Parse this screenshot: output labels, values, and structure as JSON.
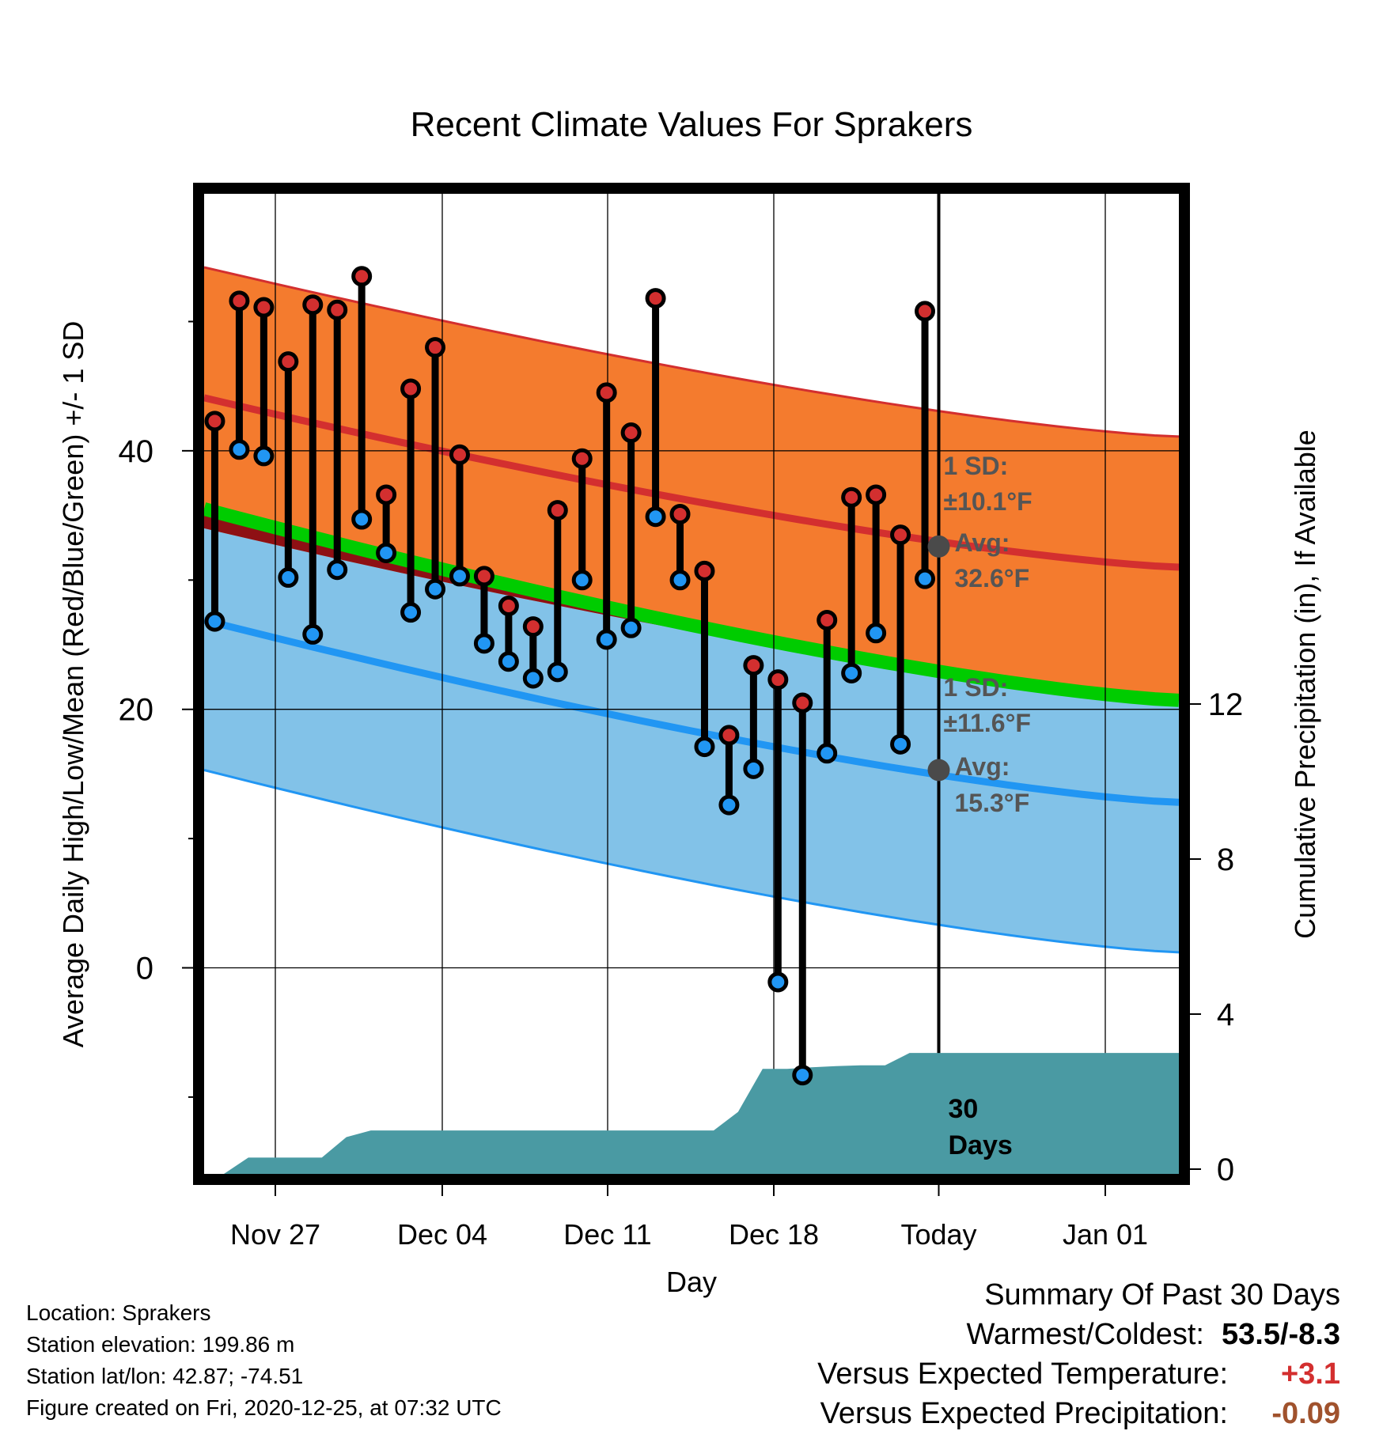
{
  "chart_data": {
    "type": "line",
    "title": "Recent Climate Values For Sprakers",
    "xlabel": "Day",
    "ylabel": "Average Daily High/Low/Mean (Red/Blue/Green) +/- 1 SD",
    "ylabel_right": "Cumulative Precipitation (in), If Available",
    "ylim": [
      -16,
      58
    ],
    "y2lim": [
      0,
      36
    ],
    "x_tick_labels": [
      "Nov 27",
      "Dec 04",
      "Dec 11",
      "Dec 18",
      "Today",
      "Jan 01"
    ],
    "y_tick_labels": [
      "0",
      "20",
      "40"
    ],
    "y2_tick_labels": [
      "0",
      "4",
      "8",
      "12"
    ],
    "days": [
      "Nov 25",
      "Nov 26",
      "Nov 27",
      "Nov 28",
      "Nov 29",
      "Nov 30",
      "Dec 01",
      "Dec 02",
      "Dec 03",
      "Dec 04",
      "Dec 05",
      "Dec 06",
      "Dec 07",
      "Dec 08",
      "Dec 09",
      "Dec 10",
      "Dec 11",
      "Dec 12",
      "Dec 13",
      "Dec 14",
      "Dec 15",
      "Dec 16",
      "Dec 17",
      "Dec 18",
      "Dec 19",
      "Dec 20",
      "Dec 21",
      "Dec 22",
      "Dec 23",
      "Dec 24"
    ],
    "series": [
      {
        "name": "High",
        "color": "#d32f2f",
        "values": [
          42.3,
          51.6,
          51.1,
          46.9,
          51.3,
          50.9,
          53.5,
          36.6,
          44.8,
          48.0,
          39.7,
          30.3,
          28.0,
          26.4,
          35.4,
          39.4,
          44.5,
          41.4,
          51.8,
          35.1,
          30.7,
          18.0,
          23.4,
          22.3,
          20.5,
          26.9,
          36.4,
          36.6,
          33.5,
          50.8
        ]
      },
      {
        "name": "Low",
        "color": "#2196f3",
        "values": [
          26.8,
          40.1,
          39.6,
          30.2,
          25.8,
          30.8,
          34.7,
          32.1,
          27.5,
          29.3,
          30.3,
          25.1,
          23.7,
          22.4,
          22.9,
          30.0,
          25.4,
          26.3,
          34.9,
          30.0,
          17.1,
          12.6,
          15.4,
          -1.1,
          -8.3,
          16.6,
          22.8,
          25.9,
          17.3,
          30.1
        ]
      }
    ],
    "normal_high": {
      "start": 44.1,
      "end": 31.0,
      "sd": 10.1,
      "today_avg": 32.6
    },
    "normal_low": {
      "start": 26.9,
      "end": 12.8,
      "sd": 11.6,
      "today_avg": 15.3
    },
    "normal_mean": {
      "start": 35.5,
      "end": 20.7
    },
    "precipitation": [
      0.0,
      0.42,
      0.42,
      0.42,
      0.42,
      0.95,
      1.12,
      1.12,
      1.12,
      1.12,
      1.12,
      1.12,
      1.12,
      1.12,
      1.12,
      1.12,
      1.12,
      1.12,
      1.12,
      1.12,
      1.12,
      1.6,
      2.71,
      2.71,
      2.75,
      2.78,
      2.8,
      2.8,
      3.12,
      3.12,
      3.12
    ],
    "colors": {
      "high_band": "#f47b2e",
      "high_line": "#d32f2f",
      "mean_band": "#8e1014",
      "mean_line": "#00cc00",
      "low_band": "#82c2e8",
      "low_line": "#2196f3",
      "precip": "#4a9aa3",
      "obs_line": "#000000",
      "avg_marker": "#4a4a4a",
      "sd_text": "#555555"
    },
    "annotations": {
      "high_sd_line1": "1 SD:",
      "high_sd_line2": "±10.1°F",
      "high_avg_line1": "Avg:",
      "high_avg_line2": "32.6°F",
      "low_sd_line1": "1 SD:",
      "low_sd_line2": "±11.6°F",
      "low_avg_line1": "Avg:",
      "low_avg_line2": "15.3°F",
      "days_line1": "30",
      "days_line2": "Days"
    },
    "grid": true
  },
  "info": {
    "location": "Location: Sprakers",
    "elevation": "Station elevation: 199.86 m",
    "latlon": "Station lat/lon: 42.87; -74.51",
    "created": "Figure created on Fri, 2020-12-25, at 07:32 UTC"
  },
  "summary": {
    "heading": "Summary Of Past 30 Days",
    "warmest_label": "Warmest/Coldest:",
    "warmest_value": "53.5/-8.3",
    "temp_label": "Versus Expected Temperature:",
    "temp_value": "+3.1",
    "temp_color": "#d32f2f",
    "precip_label": "Versus Expected Precipitation:",
    "precip_value": "-0.09",
    "precip_color": "#a0522d"
  }
}
